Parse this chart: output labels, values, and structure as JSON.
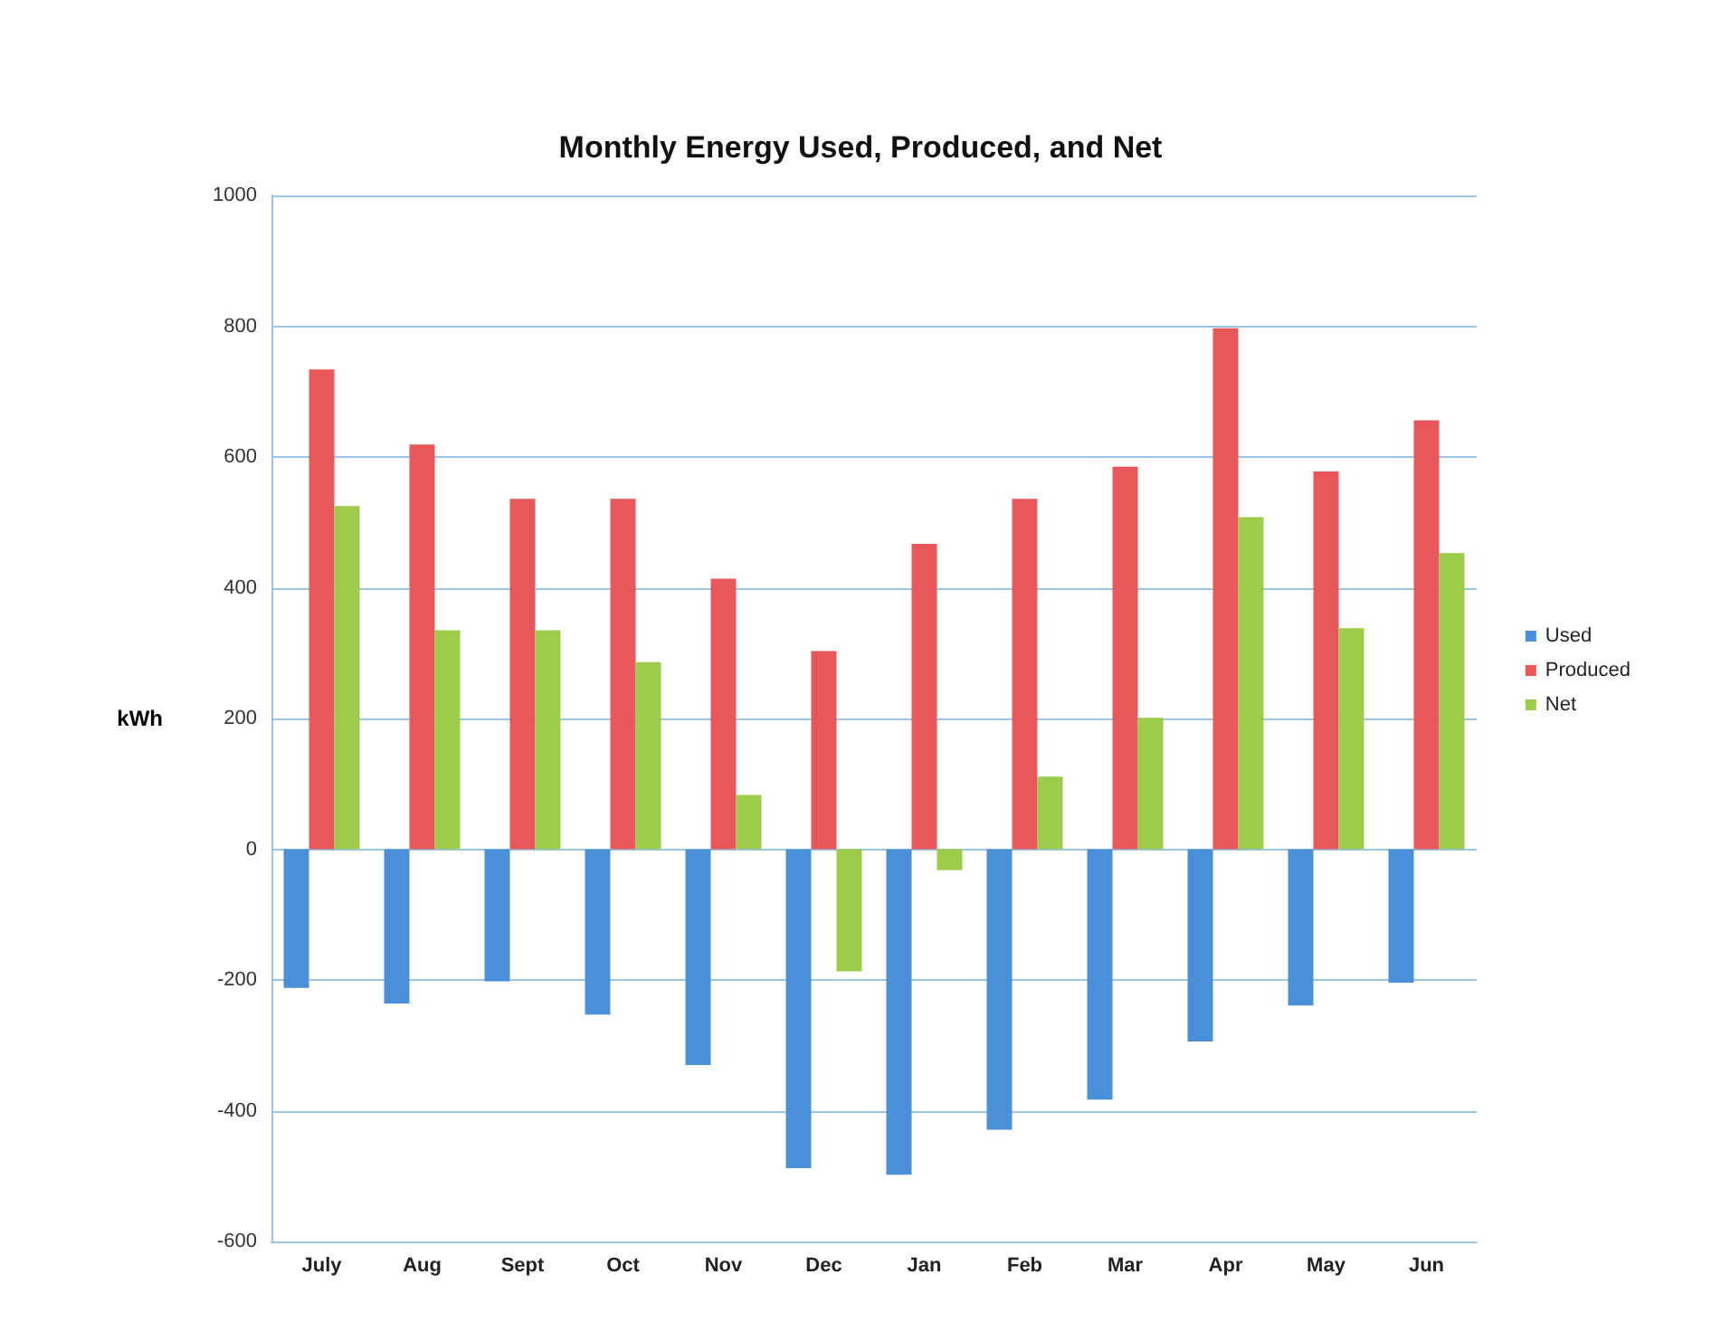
{
  "chart_data": {
    "type": "bar",
    "title": "Monthly Energy Used, Produced, and Net",
    "ylabel": "kWh",
    "categories": [
      "July",
      "Aug",
      "Sept",
      "Oct",
      "Nov",
      "Dec",
      "Jan",
      "Feb",
      "Mar",
      "Apr",
      "May",
      "Jun"
    ],
    "series": [
      {
        "name": "Used",
        "color": "#4a90d9",
        "values": [
          -212,
          -236,
          -202,
          -253,
          -330,
          -488,
          -498,
          -429,
          -383,
          -294,
          -239,
          -204
        ]
      },
      {
        "name": "Produced",
        "color": "#e8585a",
        "values": [
          734,
          619,
          536,
          536,
          414,
          303,
          467,
          536,
          585,
          797,
          578,
          656
        ]
      },
      {
        "name": "Net",
        "color": "#9ccc4a",
        "values": [
          525,
          335,
          335,
          286,
          83,
          -187,
          -32,
          111,
          201,
          508,
          338,
          453
        ]
      }
    ],
    "ylim": [
      -600,
      1000
    ],
    "yticks": [
      -600,
      -400,
      -200,
      0,
      200,
      400,
      600,
      800,
      1000
    ],
    "grid": "y",
    "legend": "right"
  }
}
